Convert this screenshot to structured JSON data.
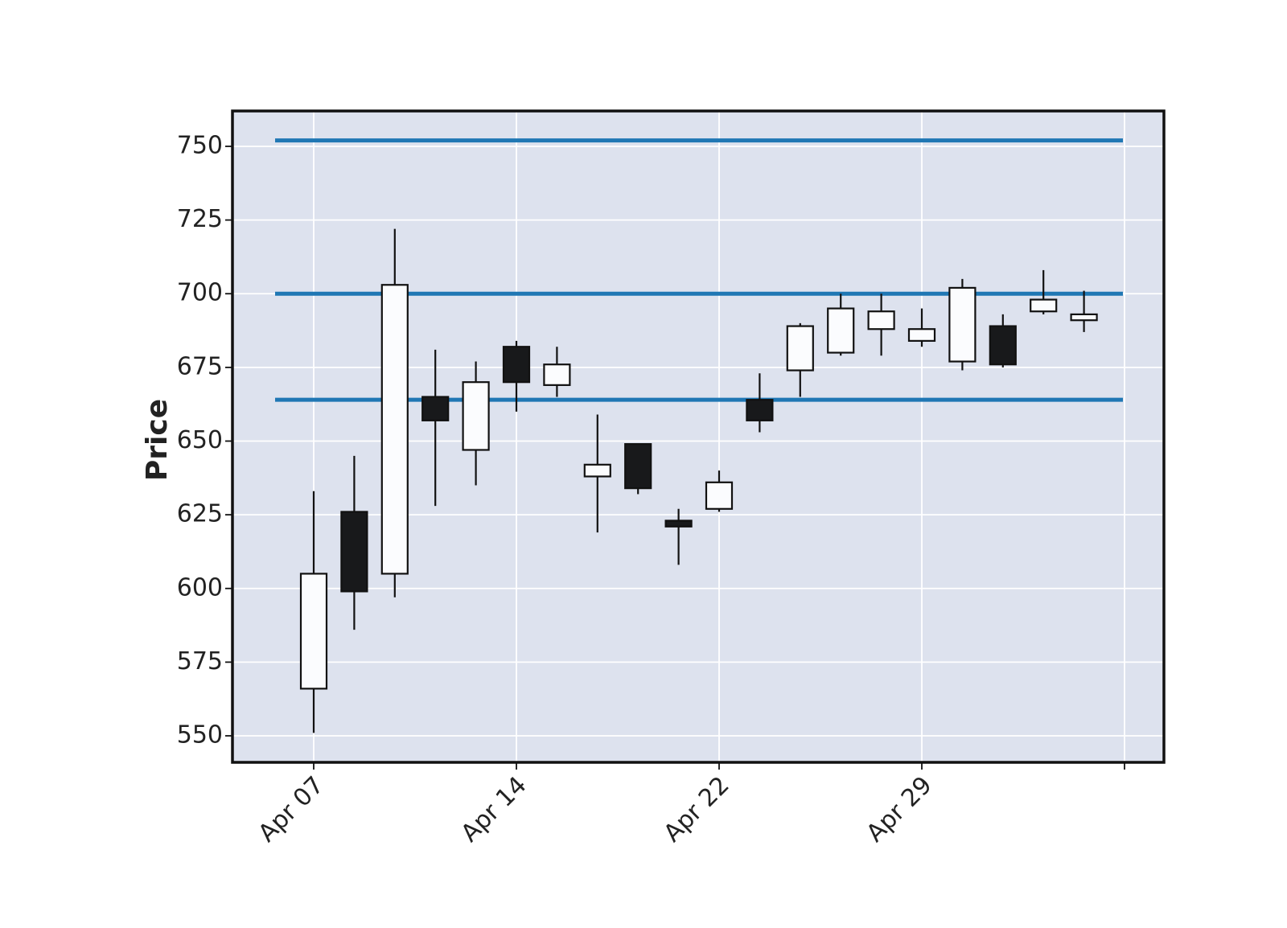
{
  "chart_data": {
    "type": "candlestick",
    "title": "",
    "xlabel": "",
    "ylabel": "Price",
    "ylim": [
      541,
      762
    ],
    "yticks": [
      550,
      575,
      600,
      625,
      650,
      675,
      700,
      725,
      750
    ],
    "x_tick_labels": [
      {
        "index": 0,
        "label": "Apr 07"
      },
      {
        "index": 5,
        "label": "Apr 14"
      },
      {
        "index": 10,
        "label": "Apr 22"
      },
      {
        "index": 15,
        "label": "Apr 29"
      }
    ],
    "grid": true,
    "background": "#dde2ee",
    "up_color": "#fbfcfe",
    "down_color": "#18191b",
    "hline_color": "#1f77b4",
    "hlines": [
      752,
      700,
      664
    ],
    "candles": [
      {
        "open": 566,
        "high": 633,
        "low": 551,
        "close": 605
      },
      {
        "open": 626,
        "high": 645,
        "low": 586,
        "close": 599
      },
      {
        "open": 605,
        "high": 722,
        "low": 597,
        "close": 703
      },
      {
        "open": 665,
        "high": 681,
        "low": 628,
        "close": 657
      },
      {
        "open": 647,
        "high": 677,
        "low": 635,
        "close": 670
      },
      {
        "open": 682,
        "high": 684,
        "low": 660,
        "close": 670
      },
      {
        "open": 669,
        "high": 682,
        "low": 665,
        "close": 676
      },
      {
        "open": 638,
        "high": 659,
        "low": 619,
        "close": 642
      },
      {
        "open": 649,
        "high": 649,
        "low": 632,
        "close": 634
      },
      {
        "open": 623,
        "high": 627,
        "low": 608,
        "close": 621
      },
      {
        "open": 627,
        "high": 640,
        "low": 626,
        "close": 636
      },
      {
        "open": 664,
        "high": 673,
        "low": 653,
        "close": 657
      },
      {
        "open": 674,
        "high": 690,
        "low": 665,
        "close": 689
      },
      {
        "open": 680,
        "high": 700,
        "low": 679,
        "close": 695
      },
      {
        "open": 688,
        "high": 700,
        "low": 679,
        "close": 694
      },
      {
        "open": 684,
        "high": 695,
        "low": 682,
        "close": 688
      },
      {
        "open": 677,
        "high": 705,
        "low": 674,
        "close": 702
      },
      {
        "open": 689,
        "high": 693,
        "low": 675,
        "close": 676
      },
      {
        "open": 694,
        "high": 708,
        "low": 693,
        "close": 698
      },
      {
        "open": 691,
        "high": 701,
        "low": 687,
        "close": 693
      }
    ]
  }
}
